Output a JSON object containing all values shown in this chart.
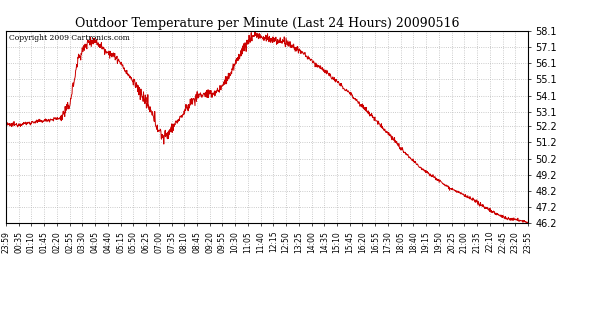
{
  "title": "Outdoor Temperature per Minute (Last 24 Hours) 20090516",
  "copyright": "Copyright 2009 Cartronics.com",
  "line_color": "#cc0000",
  "background_color": "#ffffff",
  "grid_color": "#bbbbbb",
  "ylim": [
    46.2,
    58.1
  ],
  "yticks": [
    46.2,
    47.2,
    48.2,
    49.2,
    50.2,
    51.2,
    52.2,
    53.1,
    54.1,
    55.1,
    56.1,
    57.1,
    58.1
  ],
  "xtick_labels": [
    "23:59",
    "00:35",
    "01:10",
    "01:45",
    "02:20",
    "02:55",
    "03:30",
    "04:05",
    "04:40",
    "05:15",
    "05:50",
    "06:25",
    "07:00",
    "07:35",
    "08:10",
    "08:45",
    "09:20",
    "09:55",
    "10:30",
    "11:05",
    "11:40",
    "12:15",
    "12:50",
    "13:25",
    "14:00",
    "14:35",
    "15:10",
    "15:45",
    "16:20",
    "16:55",
    "17:30",
    "18:05",
    "18:40",
    "19:15",
    "19:50",
    "20:25",
    "21:00",
    "21:35",
    "22:10",
    "22:45",
    "23:20",
    "23:55"
  ]
}
